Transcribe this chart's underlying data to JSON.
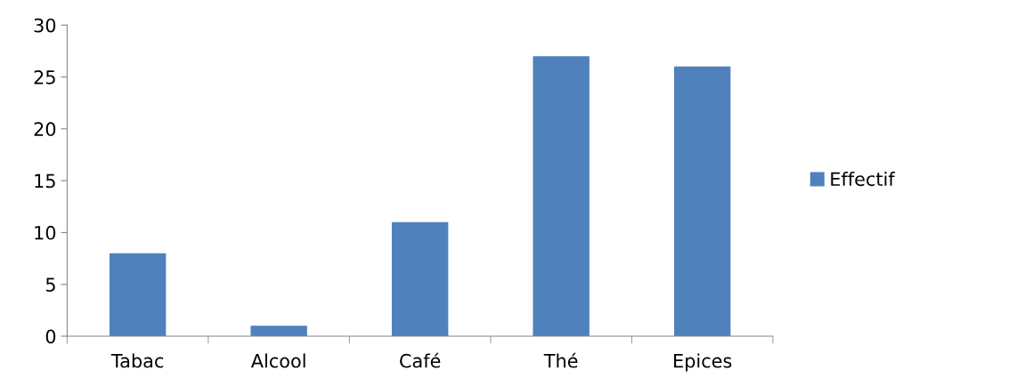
{
  "chart_data": {
    "type": "bar",
    "categories": [
      "Tabac",
      "Alcool",
      "Café",
      "Thé",
      "Epices"
    ],
    "series": [
      {
        "name": "Effectif",
        "color": "#4f81bd",
        "values": [
          8,
          1,
          11,
          27,
          26
        ]
      }
    ],
    "ylim": [
      0,
      30
    ],
    "yticks": [
      0,
      5,
      10,
      15,
      20,
      25,
      30
    ],
    "grid": false,
    "legend": "right"
  }
}
